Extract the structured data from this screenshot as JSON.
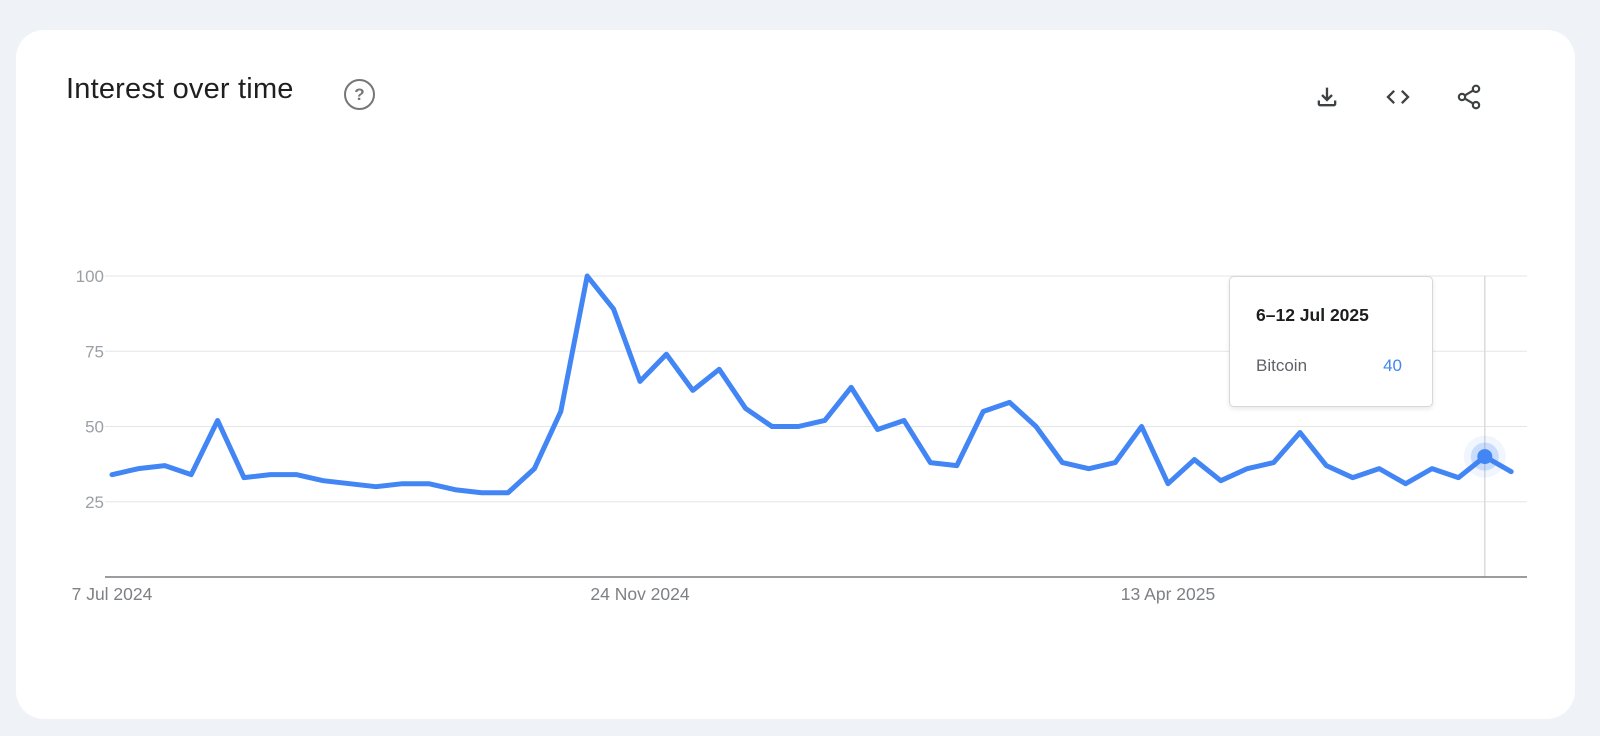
{
  "header": {
    "title": "Interest over time",
    "help_glyph": "?",
    "actions": [
      {
        "icon": "download-icon",
        "purpose": "download-csv"
      },
      {
        "icon": "embed-code-icon",
        "purpose": "embed-chart"
      },
      {
        "icon": "share-icon",
        "purpose": "share-chart"
      }
    ]
  },
  "tooltip": {
    "date_range": "6–12 Jul 2025",
    "term": "Bitcoin",
    "value": "40"
  },
  "colors": {
    "line": "#4285f4",
    "value_text": "#4285f4",
    "page_background": "#eff2f7",
    "card_background": "#ffffff",
    "gridline": "#e4e5e7",
    "axis_line": "#797c7f",
    "tick_label": "#9aa0a6",
    "x_label": "#7d8084"
  },
  "chart_data": {
    "type": "line",
    "title": "Interest over time",
    "xlabel": "",
    "ylabel": "",
    "ylim": [
      0,
      100
    ],
    "grid": true,
    "legend_position": "none",
    "yticks": [
      25,
      50,
      75,
      100
    ],
    "xticks": [
      {
        "index": 0,
        "label": "7 Jul 2024"
      },
      {
        "index": 20,
        "label": "24 Nov 2024"
      },
      {
        "index": 40,
        "label": "13 Apr 2025"
      }
    ],
    "x": [
      "7 Jul 2024",
      "14 Jul 2024",
      "21 Jul 2024",
      "28 Jul 2024",
      "4 Aug 2024",
      "11 Aug 2024",
      "18 Aug 2024",
      "25 Aug 2024",
      "1 Sep 2024",
      "8 Sep 2024",
      "15 Sep 2024",
      "22 Sep 2024",
      "29 Sep 2024",
      "6 Oct 2024",
      "13 Oct 2024",
      "20 Oct 2024",
      "27 Oct 2024",
      "3 Nov 2024",
      "10 Nov 2024",
      "17 Nov 2024",
      "24 Nov 2024",
      "1 Dec 2024",
      "8 Dec 2024",
      "15 Dec 2024",
      "22 Dec 2024",
      "29 Dec 2024",
      "5 Jan 2025",
      "12 Jan 2025",
      "19 Jan 2025",
      "26 Jan 2025",
      "2 Feb 2025",
      "9 Feb 2025",
      "16 Feb 2025",
      "23 Feb 2025",
      "2 Mar 2025",
      "9 Mar 2025",
      "16 Mar 2025",
      "23 Mar 2025",
      "30 Mar 2025",
      "6 Apr 2025",
      "13 Apr 2025",
      "20 Apr 2025",
      "27 Apr 2025",
      "4 May 2025",
      "11 May 2025",
      "18 May 2025",
      "25 May 2025",
      "1 Jun 2025",
      "8 Jun 2025",
      "15 Jun 2025",
      "22 Jun 2025",
      "29 Jun 2025",
      "6 Jul 2025",
      "13 Jul 2025"
    ],
    "series": [
      {
        "name": "Bitcoin",
        "color": "#4285f4",
        "values": [
          34,
          36,
          37,
          34,
          52,
          33,
          34,
          34,
          32,
          31,
          30,
          31,
          31,
          29,
          28,
          28,
          36,
          55,
          100,
          89,
          65,
          74,
          62,
          69,
          56,
          50,
          50,
          52,
          63,
          49,
          52,
          38,
          37,
          55,
          58,
          50,
          38,
          36,
          38,
          50,
          31,
          39,
          32,
          36,
          38,
          48,
          37,
          33,
          36,
          31,
          36,
          33,
          40,
          35
        ]
      }
    ],
    "hovered": {
      "index": 52,
      "date_range": "6–12 Jul 2025",
      "term": "Bitcoin",
      "value": 40
    }
  }
}
